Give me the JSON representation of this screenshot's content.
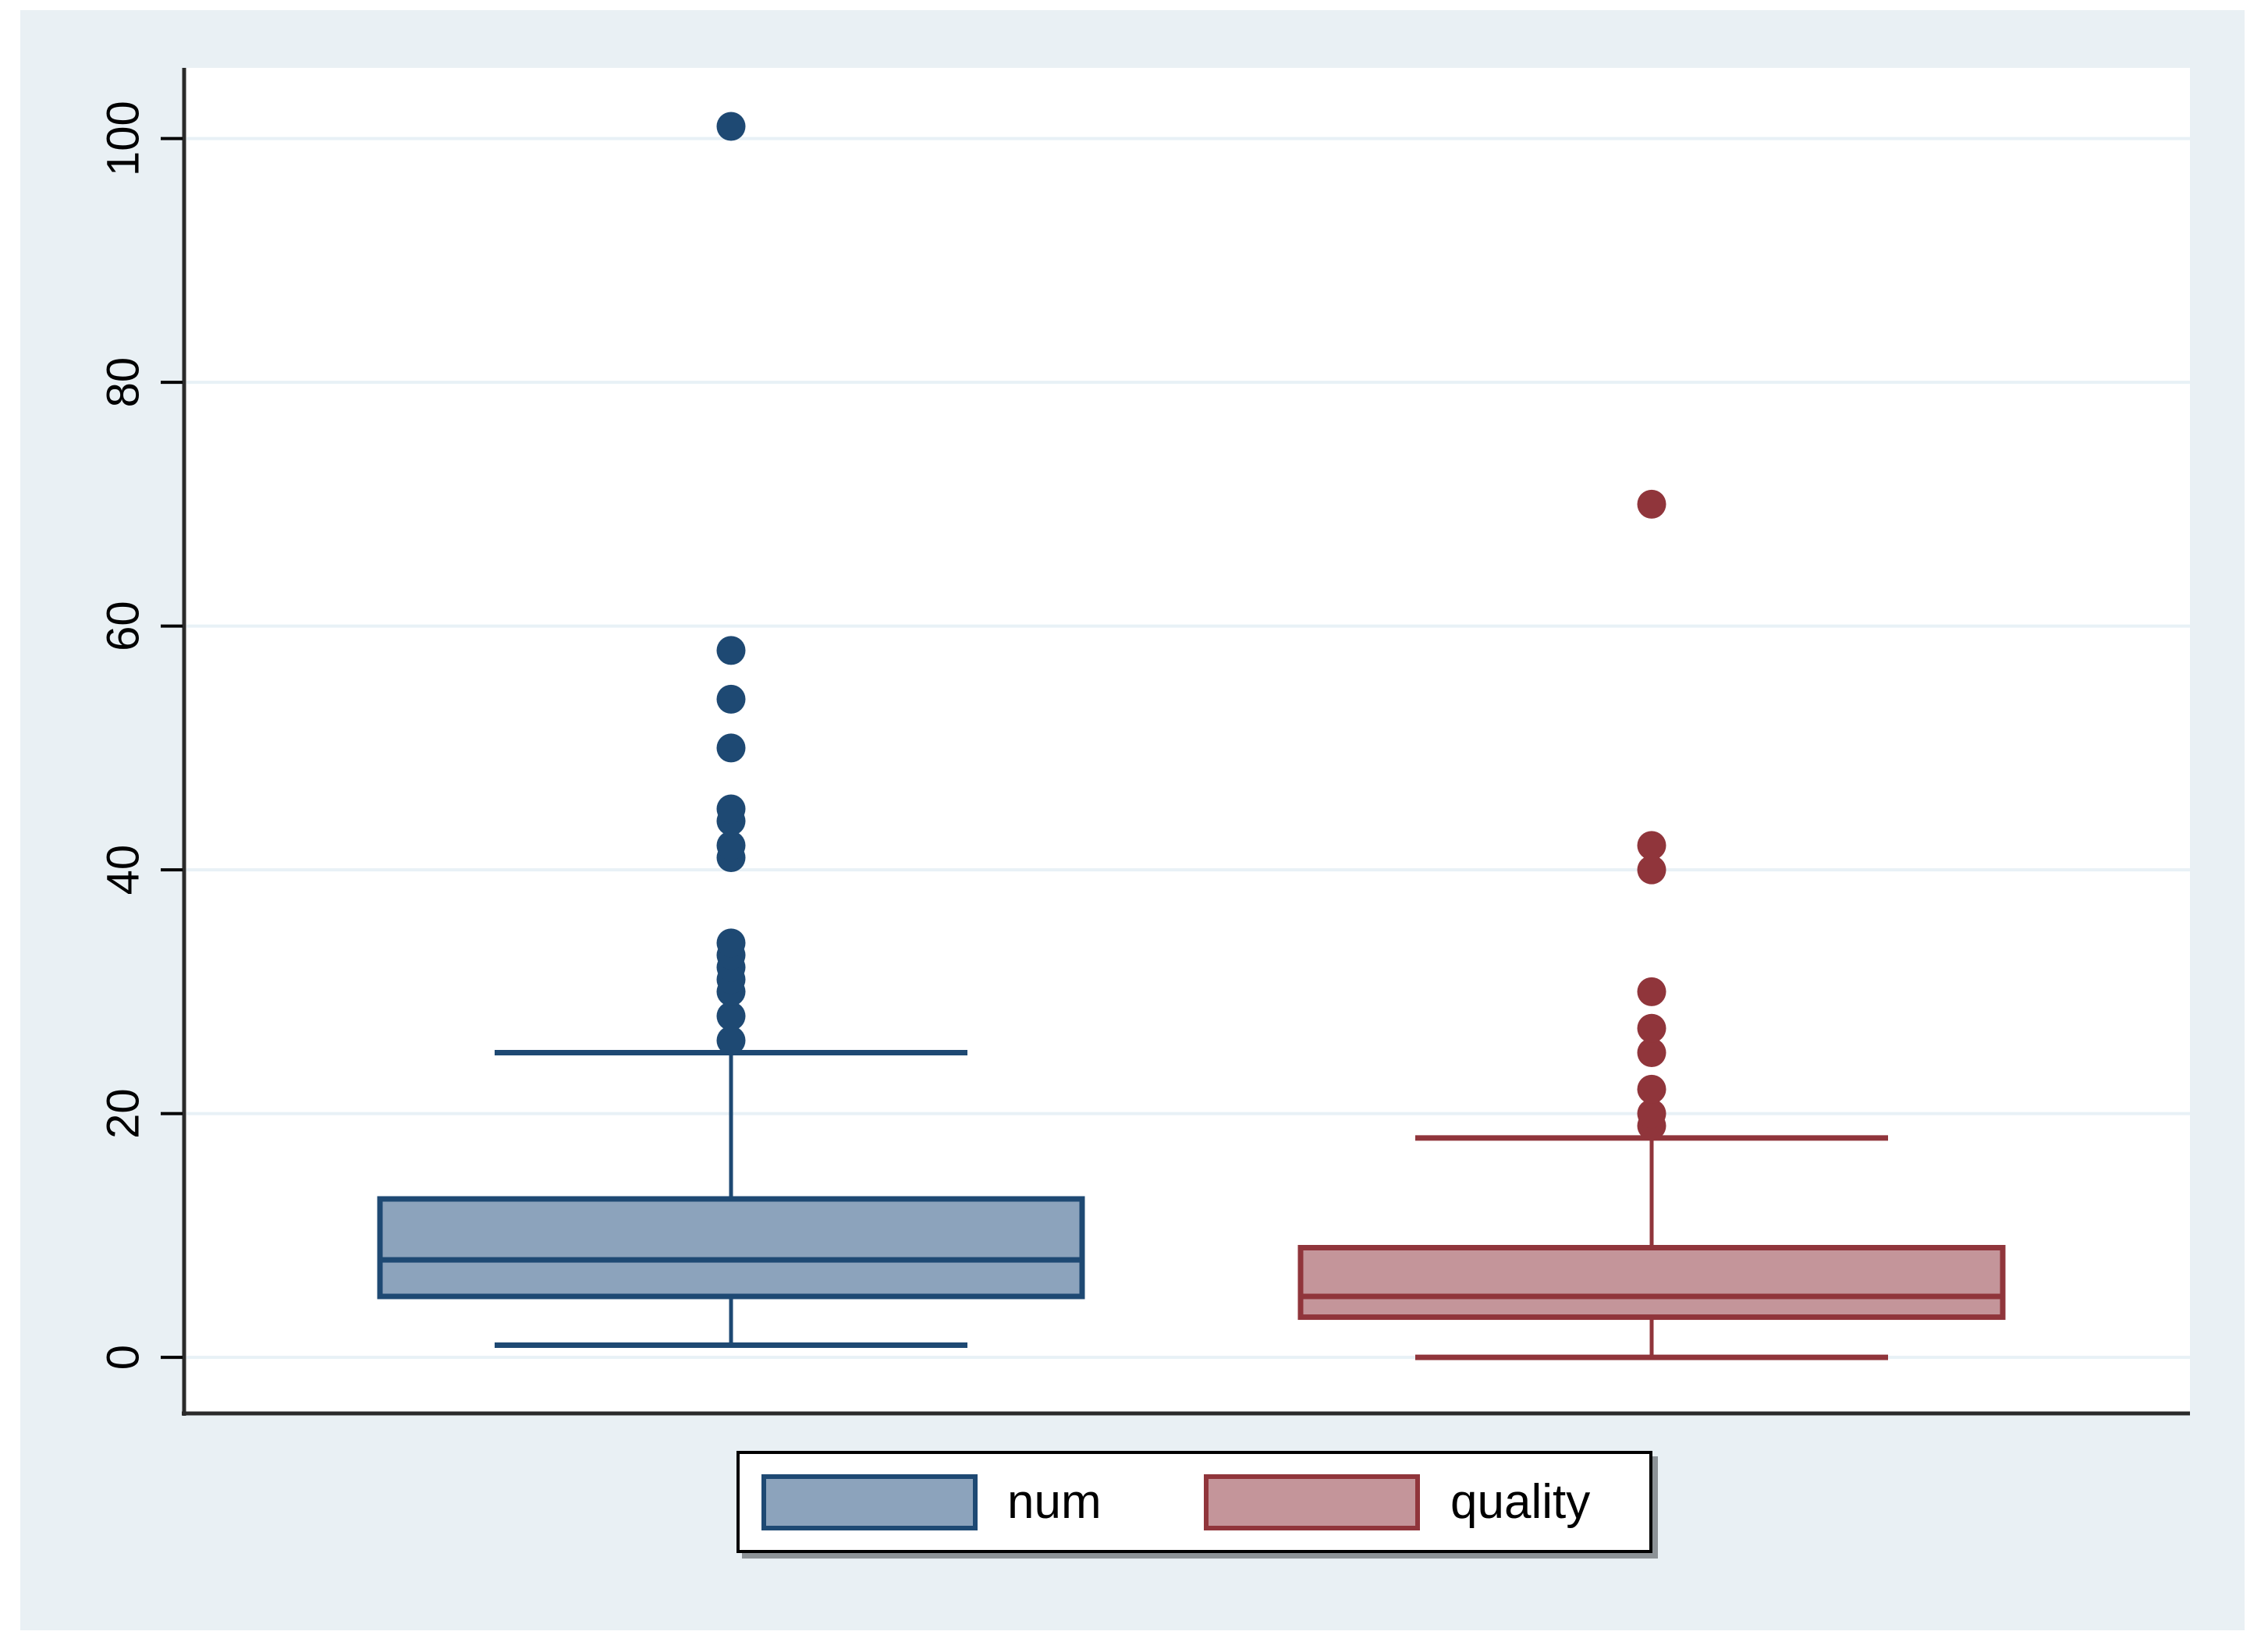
{
  "colors": {
    "figure_margin": "#ffffff",
    "background": "#e9f0f4",
    "plot_background": "#ffffff",
    "gridline": "#e8f1f6",
    "axis": "#2a2a2a",
    "tick_label": "#000000",
    "legend_background": "#ffffff",
    "legend_border": "#000000",
    "legend_shadow": "#8c9296"
  },
  "chart_data": {
    "type": "box",
    "title": "",
    "xlabel": "",
    "ylabel": "",
    "ylim": [
      -4.6,
      105.8
    ],
    "yticks": [
      0,
      20,
      40,
      60,
      80,
      100
    ],
    "grid": true,
    "legend_position": "bottom-center",
    "series": [
      {
        "name": "num",
        "line_color": "#1e4973",
        "fill_color": "#8ca3bc",
        "q1": 5,
        "median": 8,
        "q3": 13,
        "whisker_low": 1,
        "whisker_high": 25,
        "outliers": [
          26,
          28,
          30,
          31,
          32,
          33,
          34,
          41,
          42,
          44,
          45,
          50,
          54,
          58,
          101
        ]
      },
      {
        "name": "quality",
        "line_color": "#90353b",
        "fill_color": "#c4959a",
        "q1": 3.3,
        "median": 5,
        "q3": 9,
        "whisker_low": 0,
        "whisker_high": 18,
        "outliers": [
          19,
          20,
          22,
          25,
          27,
          30,
          40,
          42,
          70
        ]
      }
    ]
  },
  "legend": {
    "items": [
      {
        "label": "num"
      },
      {
        "label": "quality"
      }
    ]
  }
}
